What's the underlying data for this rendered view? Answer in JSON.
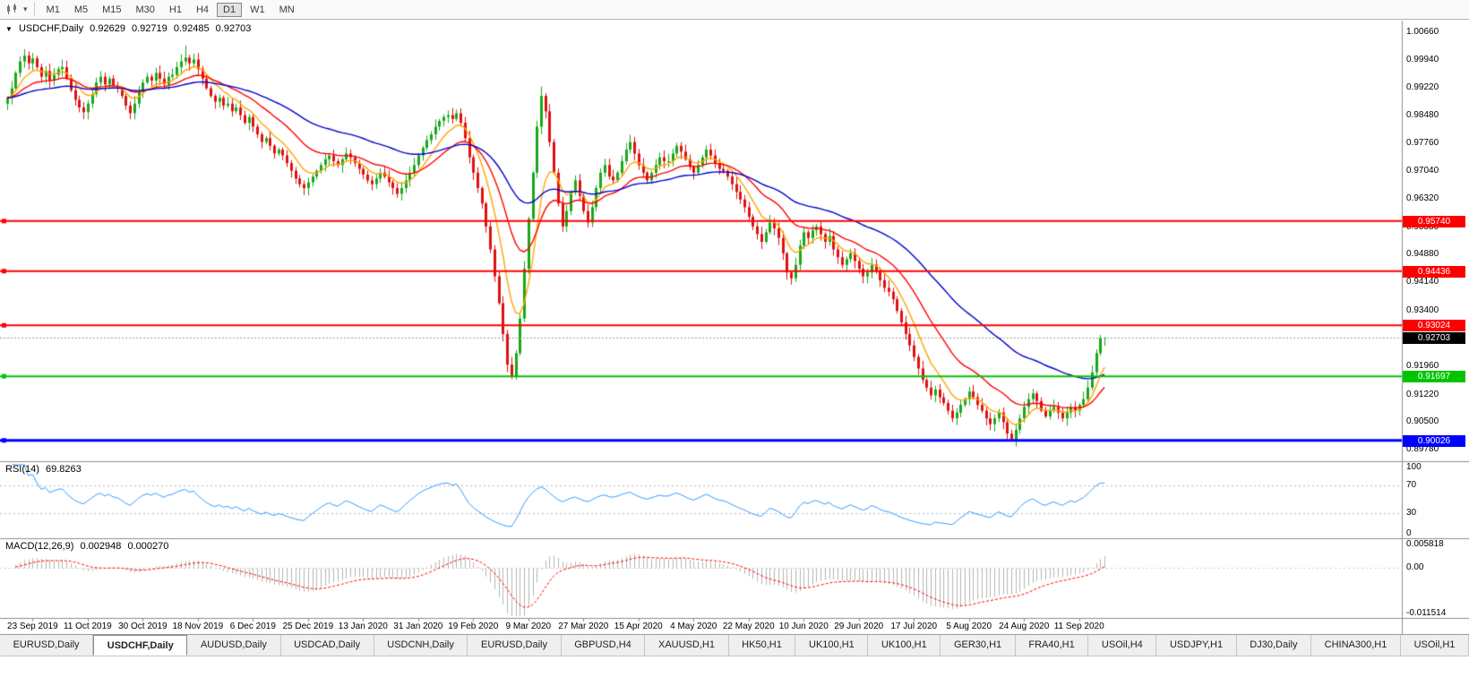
{
  "toolbar": {
    "dropdown_glyph": "▾",
    "timeframes": [
      "M1",
      "M5",
      "M15",
      "M30",
      "H1",
      "H4",
      "D1",
      "W1",
      "MN"
    ],
    "active_timeframe": "D1"
  },
  "chart_header": {
    "collapse_glyph": "▼",
    "symbol": "USDCHF,Daily",
    "open": "0.92629",
    "high": "0.92719",
    "low": "0.92485",
    "close": "0.92703"
  },
  "chart_data": {
    "type": "candlestick",
    "symbol": "USDCHF",
    "timeframe": "Daily",
    "ylim": [
      0.896,
      1.008
    ],
    "price_axis_labels": [
      "1.00660",
      "0.99940",
      "0.99220",
      "0.98480",
      "0.97760",
      "0.97040",
      "0.96320",
      "0.95580",
      "0.94880",
      "0.94140",
      "0.93400",
      "0.91960",
      "0.91220",
      "0.90500",
      "0.89780"
    ],
    "current_price": {
      "value": 0.92703,
      "label": "0.92703",
      "tag_color": "#000000"
    },
    "horizontal_lines": [
      {
        "price": 0.9574,
        "label": "0.95740",
        "color": "#FF0000",
        "width": 2
      },
      {
        "price": 0.94436,
        "label": "0.94436",
        "color": "#FF0000",
        "width": 2
      },
      {
        "price": 0.93024,
        "label": "0.93024",
        "color": "#FF0000",
        "width": 2
      },
      {
        "price": 0.91697,
        "label": "0.91697",
        "color": "#00C400",
        "width": 2
      },
      {
        "price": 0.90026,
        "label": "0.90026",
        "color": "#0000FF",
        "width": 3
      }
    ],
    "candle_colors": {
      "up": "#18A818",
      "down": "#E01010"
    },
    "first_open": 0.988,
    "closes": [
      0.9895,
      0.992,
      0.996,
      0.999,
      1.0005,
      0.9985,
      0.9998,
      0.9975,
      0.995,
      0.9965,
      0.994,
      0.9955,
      0.997,
      0.9975,
      0.9945,
      0.9915,
      0.989,
      0.987,
      0.9858,
      0.988,
      0.9905,
      0.9935,
      0.995,
      0.993,
      0.9945,
      0.9925,
      0.992,
      0.99,
      0.9875,
      0.9855,
      0.988,
      0.991,
      0.9935,
      0.995,
      0.994,
      0.996,
      0.9945,
      0.993,
      0.995,
      0.9955,
      0.9975,
      0.999,
      1.0,
      0.9985,
      0.9995,
      0.997,
      0.9945,
      0.992,
      0.99,
      0.9885,
      0.9895,
      0.9875,
      0.988,
      0.986,
      0.987,
      0.985,
      0.983,
      0.9845,
      0.982,
      0.98,
      0.978,
      0.979,
      0.977,
      0.975,
      0.976,
      0.9745,
      0.9725,
      0.9705,
      0.9685,
      0.967,
      0.966,
      0.9675,
      0.969,
      0.9705,
      0.972,
      0.9735,
      0.9745,
      0.973,
      0.972,
      0.9735,
      0.975,
      0.974,
      0.9725,
      0.971,
      0.9695,
      0.968,
      0.967,
      0.9685,
      0.97,
      0.969,
      0.9675,
      0.966,
      0.9645,
      0.966,
      0.968,
      0.97,
      0.972,
      0.9745,
      0.9765,
      0.9785,
      0.98,
      0.982,
      0.9835,
      0.9845,
      0.985,
      0.984,
      0.9855,
      0.983,
      0.979,
      0.974,
      0.97,
      0.966,
      0.962,
      0.956,
      0.95,
      0.943,
      0.936,
      0.928,
      0.92,
      0.917,
      0.923,
      0.932,
      0.945,
      0.958,
      0.97,
      0.982,
      0.99,
      0.986,
      0.978,
      0.97,
      0.962,
      0.956,
      0.96,
      0.965,
      0.968,
      0.964,
      0.96,
      0.957,
      0.961,
      0.966,
      0.97,
      0.972,
      0.969,
      0.968,
      0.97,
      0.973,
      0.976,
      0.978,
      0.975,
      0.972,
      0.97,
      0.968,
      0.97,
      0.972,
      0.974,
      0.973,
      0.973,
      0.975,
      0.977,
      0.9755,
      0.9735,
      0.9715,
      0.97,
      0.972,
      0.974,
      0.976,
      0.9745,
      0.9725,
      0.971,
      0.9705,
      0.969,
      0.967,
      0.965,
      0.963,
      0.961,
      0.9585,
      0.956,
      0.954,
      0.952,
      0.9545,
      0.957,
      0.9555,
      0.953,
      0.949,
      0.944,
      0.9425,
      0.946,
      0.951,
      0.9545,
      0.953,
      0.955,
      0.956,
      0.954,
      0.952,
      0.9535,
      0.95,
      0.948,
      0.946,
      0.9475,
      0.949,
      0.947,
      0.945,
      0.943,
      0.944,
      0.946,
      0.9445,
      0.942,
      0.94,
      0.939,
      0.937,
      0.934,
      0.931,
      0.928,
      0.925,
      0.922,
      0.919,
      0.916,
      0.914,
      0.912,
      0.9135,
      0.9115,
      0.91,
      0.908,
      0.906,
      0.9075,
      0.9095,
      0.911,
      0.913,
      0.9115,
      0.9095,
      0.908,
      0.906,
      0.9045,
      0.906,
      0.9075,
      0.905,
      0.902,
      0.9005,
      0.903,
      0.906,
      0.909,
      0.911,
      0.9125,
      0.9105,
      0.908,
      0.9065,
      0.908,
      0.909,
      0.9075,
      0.906,
      0.9075,
      0.909,
      0.908,
      0.9095,
      0.911,
      0.914,
      0.918,
      0.923,
      0.927,
      0.92703
    ],
    "wick_overrides": {
      "4": {
        "h": 1.0022
      },
      "42": {
        "h": 1.0032
      },
      "119": {
        "l": 0.9162
      },
      "126": {
        "h": 0.9925
      },
      "237": {
        "l": 0.8999
      },
      "259": {
        "h": 0.92719,
        "l": 0.92485
      }
    },
    "moving_averages": [
      {
        "type": "ema",
        "period": 8,
        "color": "#FFA500"
      },
      {
        "type": "ema",
        "period": 21,
        "color": "#FF0000"
      },
      {
        "type": "ema",
        "period": 50,
        "color": "#0000CD"
      }
    ],
    "x_axis_labels": [
      "23 Sep 2019",
      "11 Oct 2019",
      "30 Oct 2019",
      "18 Nov 2019",
      "6 Dec 2019",
      "25 Dec 2019",
      "13 Jan 2020",
      "31 Jan 2020",
      "19 Feb 2020",
      "9 Mar 2020",
      "27 Mar 2020",
      "15 Apr 2020",
      "4 May 2020",
      "22 May 2020",
      "10 Jun 2020",
      "29 Jun 2020",
      "17 Jul 2020",
      "5 Aug 2020",
      "24 Aug 2020",
      "11 Sep 2020"
    ],
    "candles_per_x_label": 13
  },
  "rsi_panel": {
    "label": "RSI(14)",
    "value": "69.8263",
    "period": 14,
    "levels": [
      70,
      30
    ],
    "axis_labels": [
      "100",
      "70",
      "30",
      "0"
    ],
    "line_color": "#3399FF"
  },
  "macd_panel": {
    "label": "MACD(12,26,9)",
    "macd_value": "0.002948",
    "signal_value": "0.000270",
    "fast": 12,
    "slow": 26,
    "signal": 9,
    "axis_labels": [
      "0.005818",
      "0.00",
      "-0.011514"
    ],
    "axis_max": 0.005818,
    "axis_min": -0.011514,
    "histogram_color": "#B4B4B4",
    "signal_color": "#FF0000"
  },
  "tabs": {
    "items": [
      "EURUSD,Daily",
      "USDCHF,Daily",
      "AUDUSD,Daily",
      "USDCAD,Daily",
      "USDCNH,Daily",
      "EURUSD,Daily",
      "GBPUSD,H4",
      "XAUUSD,H1",
      "HK50,H1",
      "UK100,H1",
      "UK100,H1",
      "GER30,H1",
      "FRA40,H1",
      "USOil,H4",
      "USDJPY,H1",
      "DJ30,Daily",
      "CHINA300,H1",
      "USOil,H1"
    ],
    "active_index": 1
  }
}
